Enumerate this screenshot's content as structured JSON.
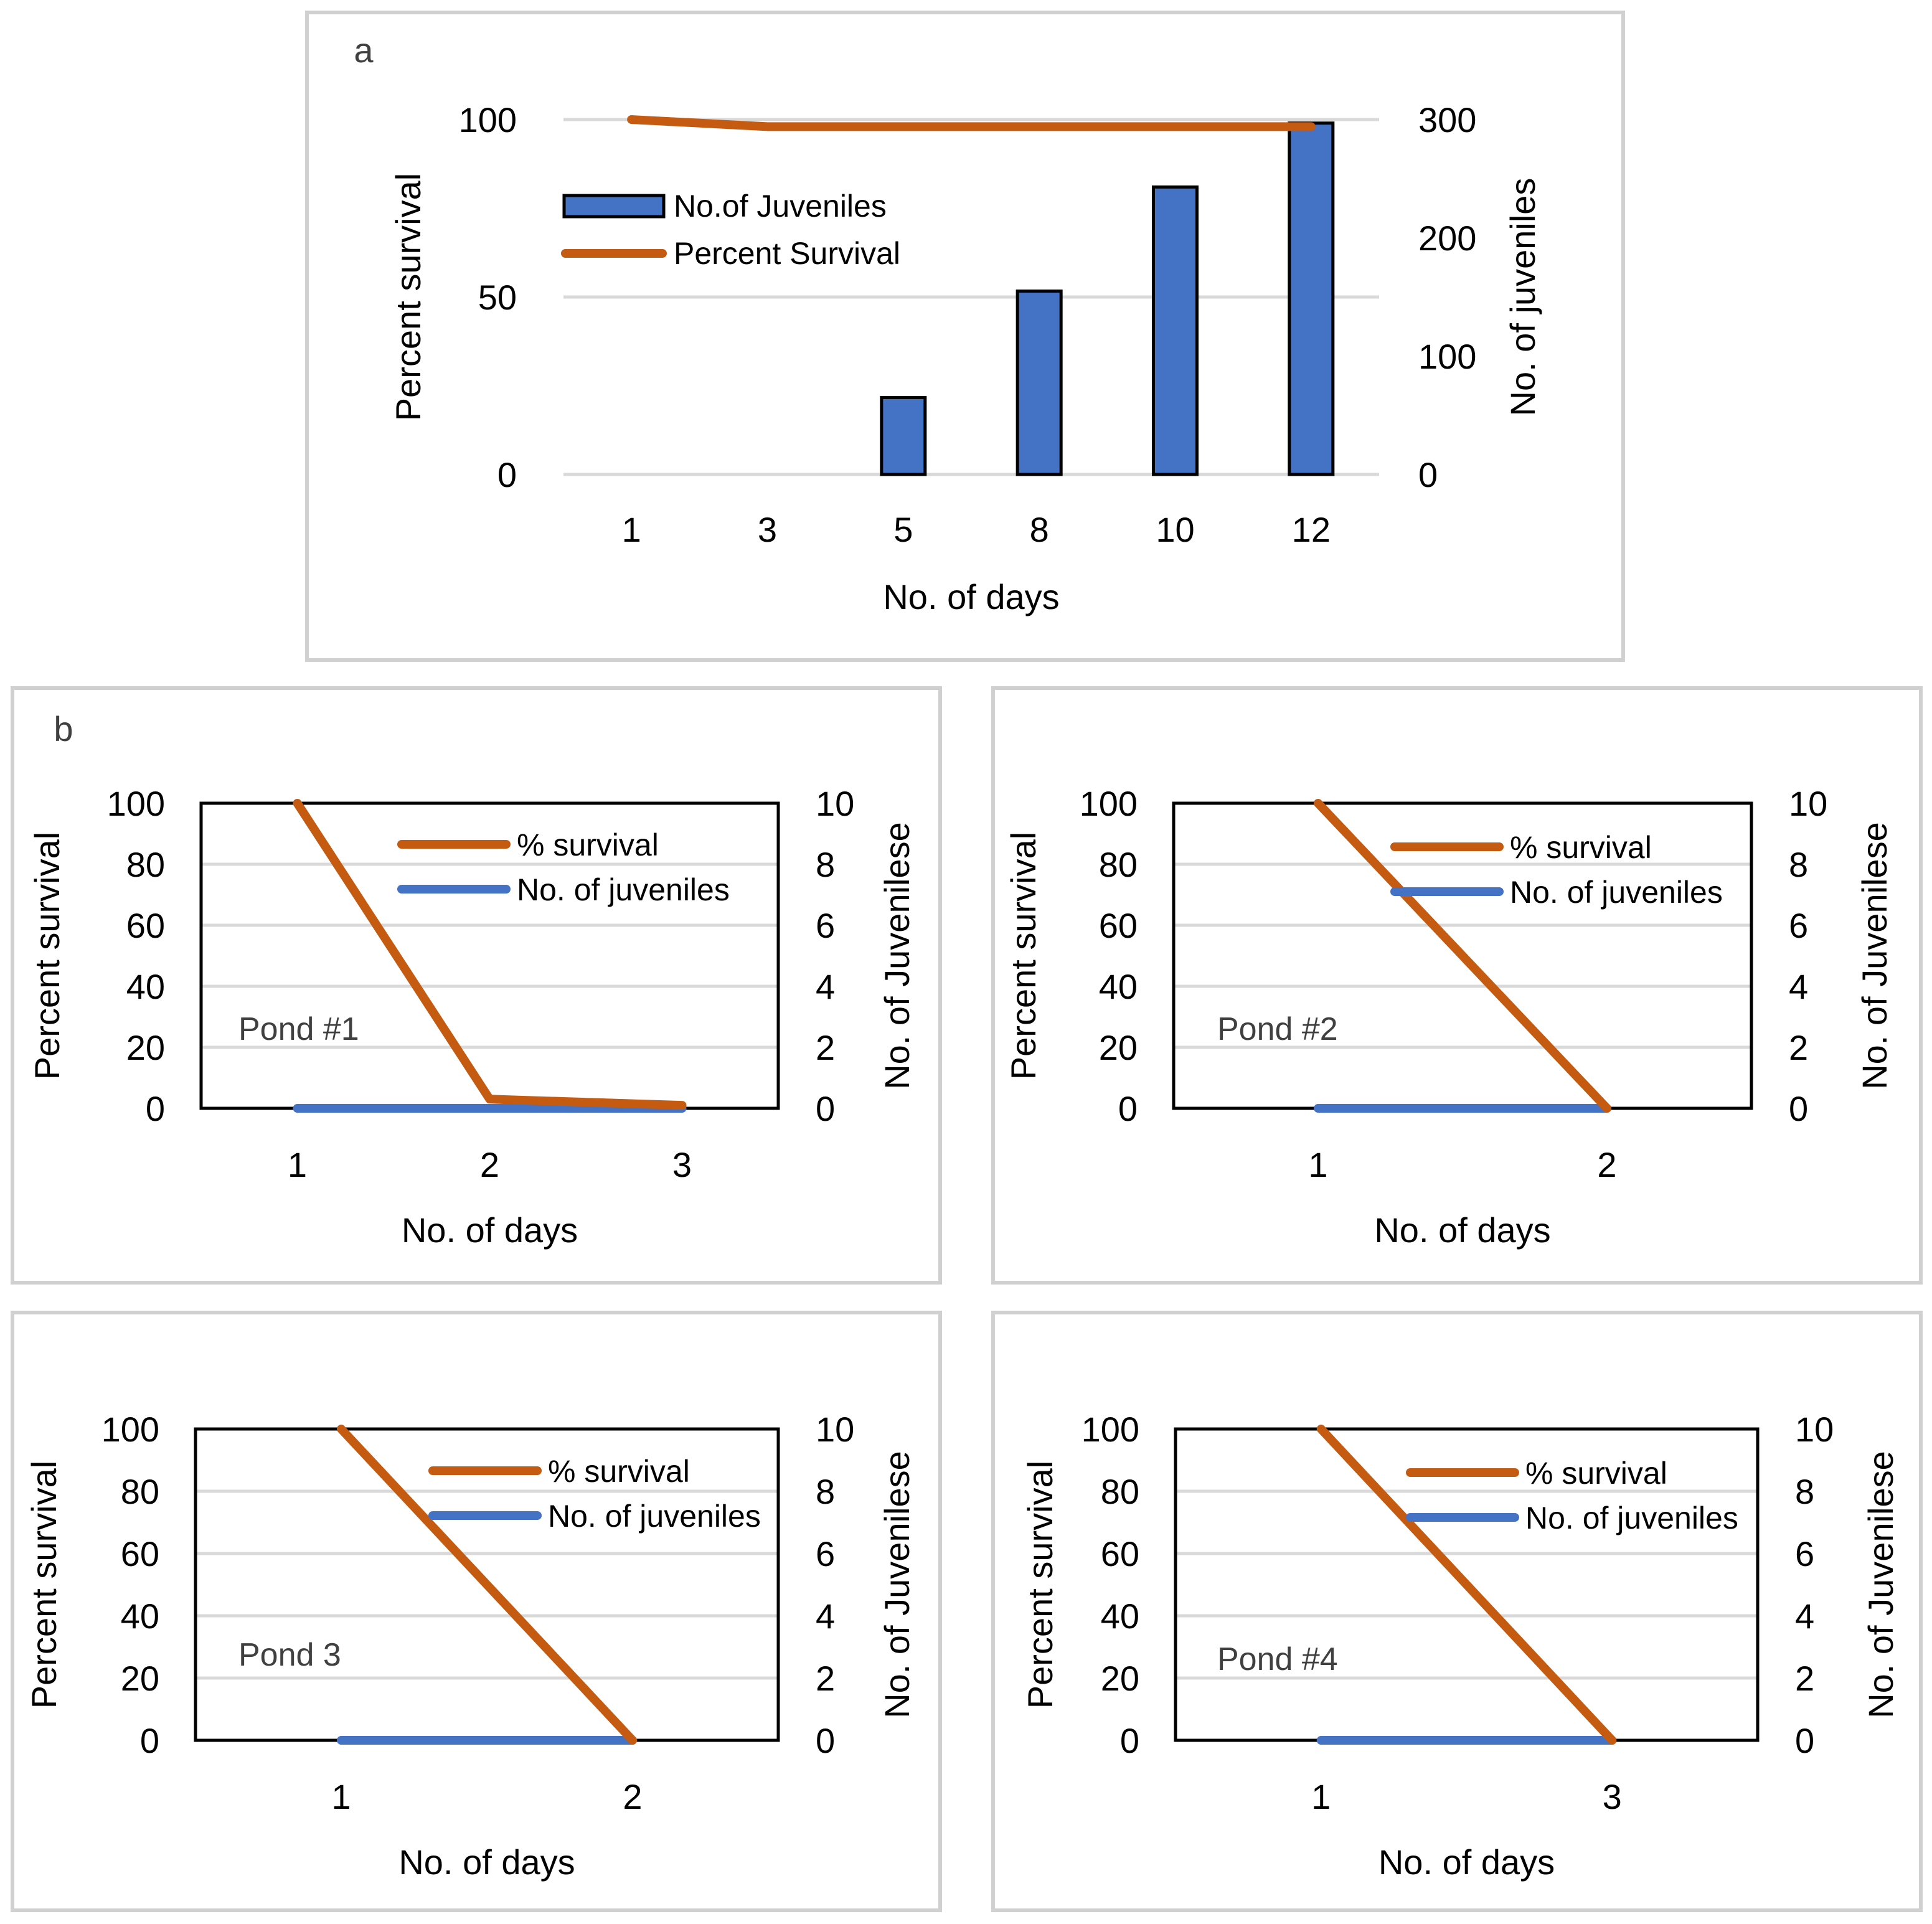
{
  "colors": {
    "orange": "#C55A11",
    "blue": "#4472C4",
    "bar_edge": "#000000"
  },
  "chart_data": [
    {
      "id": "a",
      "type": "bar",
      "panel_label": "a",
      "categories": [
        "1",
        "3",
        "5",
        "8",
        "10",
        "12"
      ],
      "series": [
        {
          "name": "No.of Juveniles",
          "type": "bar",
          "axis": "right",
          "values": [
            0,
            0,
            65,
            155,
            243,
            297
          ]
        },
        {
          "name": "Percent Survival",
          "type": "line",
          "axis": "left",
          "values": [
            100,
            98,
            98,
            98,
            98,
            98
          ]
        }
      ],
      "xlabel": "No. of days",
      "ylabel": "Percent survival",
      "y2label": "No. of juveniles",
      "ylim": [
        0,
        100
      ],
      "yticks": [
        "0",
        "50",
        "100"
      ],
      "y2lim": [
        0,
        300
      ],
      "y2ticks": [
        "0",
        "100",
        "200",
        "300"
      ],
      "legend": "upper-left inside"
    },
    {
      "id": "b1",
      "type": "line",
      "panel_label": "b",
      "annotation": "Pond #1",
      "categories": [
        "1",
        "2",
        "3"
      ],
      "series": [
        {
          "name": "% survival",
          "axis": "left",
          "values": [
            100,
            3,
            1
          ]
        },
        {
          "name": "No. of juveniles",
          "axis": "right",
          "values": [
            0,
            0,
            0
          ]
        }
      ],
      "xlabel": "No. of days",
      "ylabel": "Percent survival",
      "y2label": "No. of Juvenilese",
      "ylim": [
        0,
        100
      ],
      "yticks": [
        "0",
        "20",
        "40",
        "60",
        "80",
        "100"
      ],
      "y2lim": [
        0,
        10
      ],
      "y2ticks": [
        "0",
        "2",
        "4",
        "6",
        "8",
        "10"
      ]
    },
    {
      "id": "b2",
      "type": "line",
      "annotation": "Pond #2",
      "categories": [
        "1",
        "2"
      ],
      "series": [
        {
          "name": "% survival",
          "axis": "left",
          "values": [
            100,
            0
          ]
        },
        {
          "name": "No. of juveniles",
          "axis": "right",
          "values": [
            0,
            0
          ]
        }
      ],
      "xlabel": "No. of days",
      "ylabel": "Percent survival",
      "y2label": "No. of Juvenilese",
      "ylim": [
        0,
        100
      ],
      "yticks": [
        "0",
        "20",
        "40",
        "60",
        "80",
        "100"
      ],
      "y2lim": [
        0,
        10
      ],
      "y2ticks": [
        "0",
        "2",
        "4",
        "6",
        "8",
        "10"
      ]
    },
    {
      "id": "b3",
      "type": "line",
      "annotation": "Pond 3",
      "categories": [
        "1",
        "2"
      ],
      "series": [
        {
          "name": "% survival",
          "axis": "left",
          "values": [
            100,
            0
          ]
        },
        {
          "name": "No. of juveniles",
          "axis": "right",
          "values": [
            0,
            0
          ]
        }
      ],
      "xlabel": "No. of days",
      "ylabel": "Percent survival",
      "y2label": "No. of Juvenilese",
      "ylim": [
        0,
        100
      ],
      "yticks": [
        "0",
        "20",
        "40",
        "60",
        "80",
        "100"
      ],
      "y2lim": [
        0,
        10
      ],
      "y2ticks": [
        "0",
        "2",
        "4",
        "6",
        "8",
        "10"
      ]
    },
    {
      "id": "b4",
      "type": "line",
      "annotation": "Pond #4",
      "categories": [
        "1",
        "3"
      ],
      "series": [
        {
          "name": "% survival",
          "axis": "left",
          "values": [
            100,
            0
          ]
        },
        {
          "name": "No. of juveniles",
          "axis": "right",
          "values": [
            0,
            0
          ]
        }
      ],
      "xlabel": "No. of days",
      "ylabel": "Percent survival",
      "y2label": "No. of Juvenilese",
      "ylim": [
        0,
        100
      ],
      "yticks": [
        "0",
        "20",
        "40",
        "60",
        "80",
        "100"
      ],
      "y2lim": [
        0,
        10
      ],
      "y2ticks": [
        "0",
        "2",
        "4",
        "6",
        "8",
        "10"
      ]
    }
  ]
}
